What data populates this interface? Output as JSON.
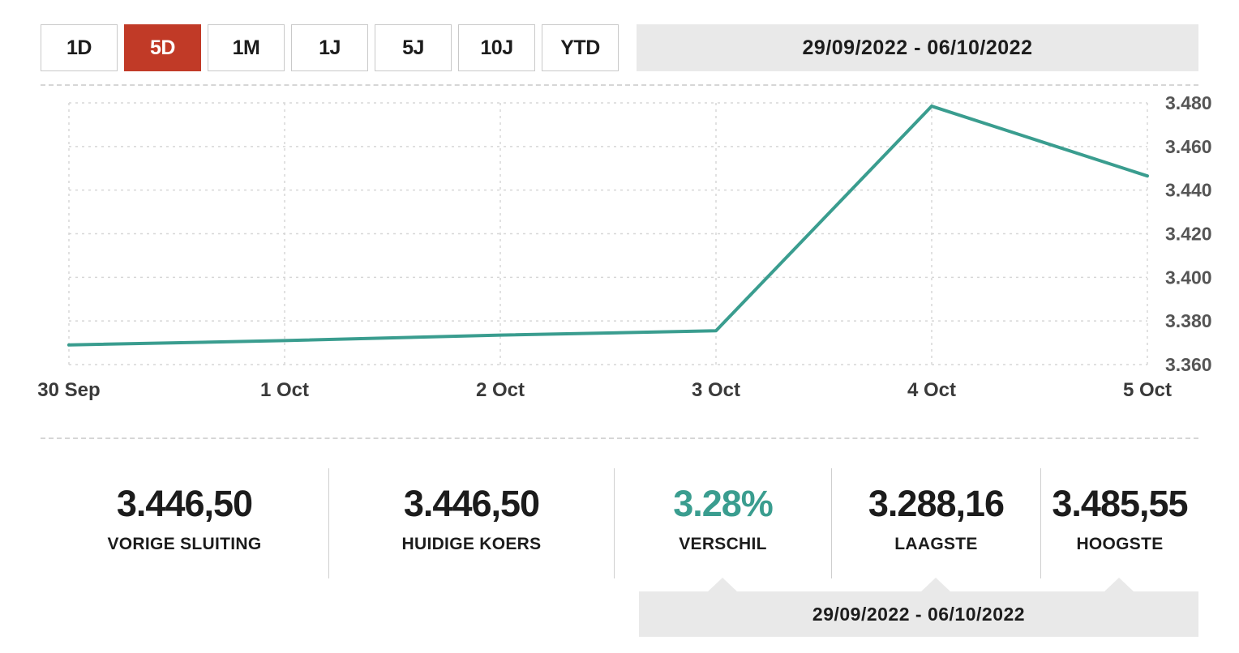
{
  "toolbar": {
    "range_buttons": [
      {
        "label": "1D",
        "active": false
      },
      {
        "label": "5D",
        "active": true
      },
      {
        "label": "1M",
        "active": false
      },
      {
        "label": "1J",
        "active": false
      },
      {
        "label": "5J",
        "active": false
      },
      {
        "label": "10J",
        "active": false
      },
      {
        "label": "YTD",
        "active": false
      }
    ],
    "date_range": "29/09/2022 - 06/10/2022"
  },
  "chart_data": {
    "type": "line",
    "x": [
      "30 Sep",
      "1 Oct",
      "2 Oct",
      "3 Oct",
      "4 Oct",
      "5 Oct"
    ],
    "values": [
      3369,
      3371,
      3373.5,
      3375.5,
      3478.5,
      3446.5
    ],
    "ylim": [
      3360,
      3480
    ],
    "y_ticks": [
      3480,
      3460,
      3440,
      3420,
      3400,
      3380,
      3360
    ],
    "y_tick_labels": [
      "3.480",
      "3.460",
      "3.440",
      "3.420",
      "3.400",
      "3.380",
      "3.360"
    ],
    "grid": "dashed",
    "legend": "none",
    "title": "",
    "xlabel": "",
    "ylabel": ""
  },
  "stats": [
    {
      "value": "3.446,50",
      "label": "VORIGE SLUITING",
      "highlight": false
    },
    {
      "value": "3.446,50",
      "label": "HUIDIGE KOERS",
      "highlight": false
    },
    {
      "value": "3.28%",
      "label": "VERSCHIL",
      "highlight": true
    },
    {
      "value": "3.288,16",
      "label": "LAAGSTE",
      "highlight": false
    },
    {
      "value": "3.485,55",
      "label": "HOOGSTE",
      "highlight": false
    }
  ],
  "footer": {
    "date_range": "29/09/2022 - 06/10/2022"
  },
  "colors": {
    "accent_red": "#c13a27",
    "accent_teal": "#3a9d8f",
    "bar_gray": "#e9e9e9",
    "grid_gray": "#d7d7d7"
  }
}
